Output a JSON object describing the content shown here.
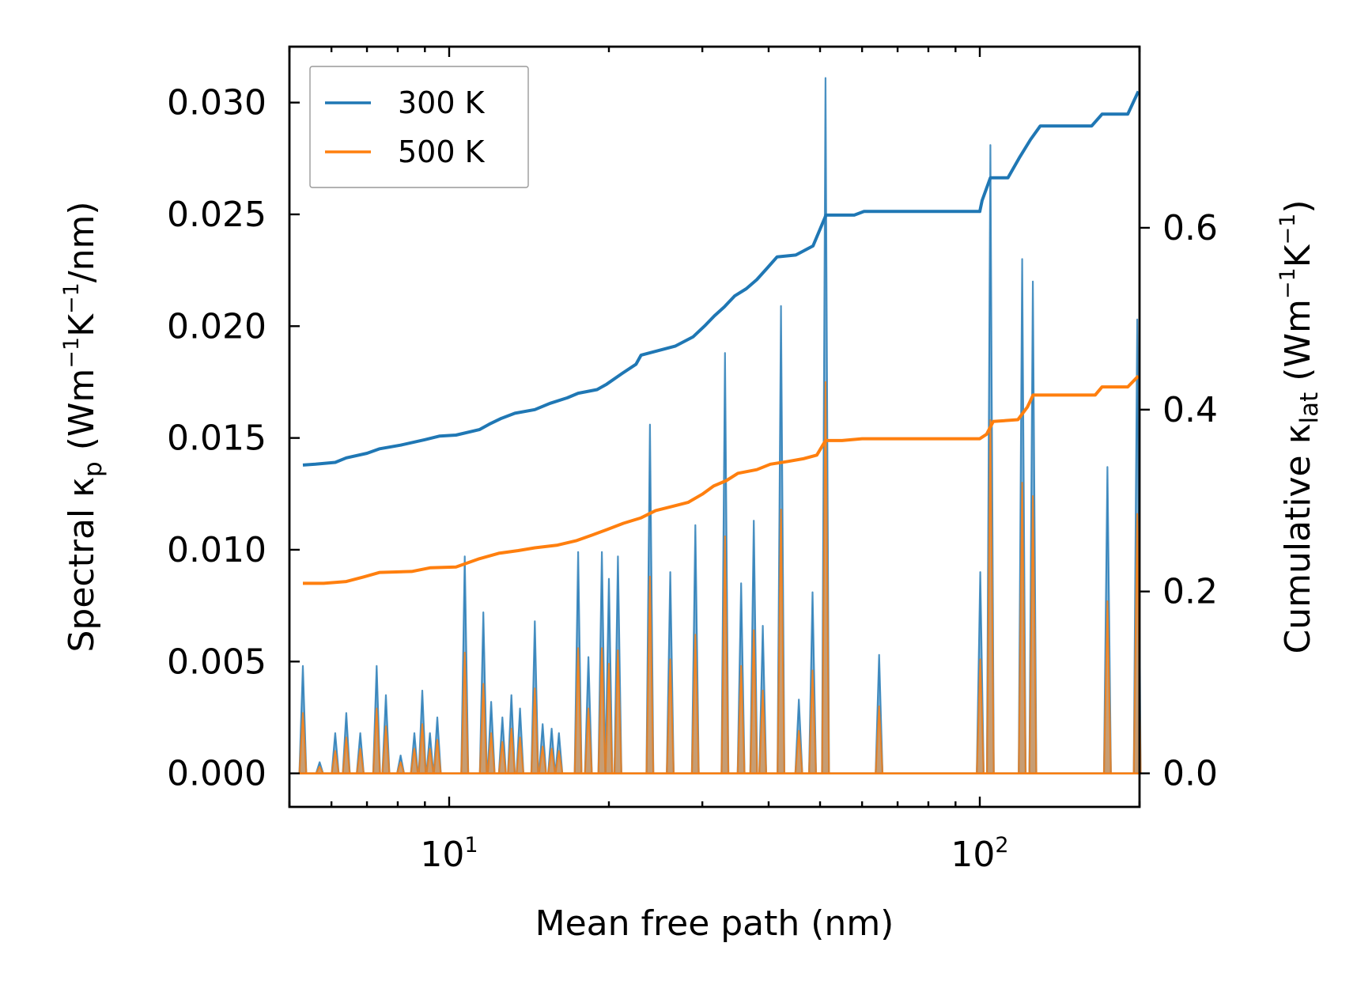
{
  "chart_data": {
    "type": "line",
    "title": "",
    "xlabel": "Mean free path (nm)",
    "xscale": "log",
    "xlim": [
      5.0,
      200.0
    ],
    "x_ticks": [
      {
        "value": 10,
        "base": "10",
        "exp": "1"
      },
      {
        "value": 100,
        "base": "10",
        "exp": "2"
      }
    ],
    "ylabel_left": {
      "parts": [
        {
          "t": "Spectral κ"
        },
        {
          "t": "p",
          "role": "sub"
        },
        {
          "t": " (Wm"
        },
        {
          "t": "−1",
          "role": "sup"
        },
        {
          "t": "K"
        },
        {
          "t": "−1",
          "role": "sup"
        },
        {
          "t": "/nm)"
        }
      ]
    },
    "ylabel_right": {
      "parts": [
        {
          "t": "Cumulative κ"
        },
        {
          "t": "lat",
          "role": "sub"
        },
        {
          "t": " (Wm"
        },
        {
          "t": "−1",
          "role": "sup"
        },
        {
          "t": "K"
        },
        {
          "t": "−1",
          "role": "sup"
        },
        {
          "t": ")"
        }
      ]
    },
    "ylim_left": [
      -0.0015,
      0.0325
    ],
    "yticks_left": [
      "0.000",
      "0.005",
      "0.010",
      "0.015",
      "0.020",
      "0.025",
      "0.030"
    ],
    "ylim_right": [
      -0.0369,
      0.7992
    ],
    "yticks_right": [
      "0.0",
      "0.2",
      "0.4",
      "0.6"
    ],
    "legend": {
      "position": "top-left",
      "entries": [
        {
          "label": "300 K",
          "color": "#1f77b4"
        },
        {
          "label": "500 K",
          "color": "#ff7f0e"
        }
      ]
    },
    "spectral_series": [
      {
        "name": "300 K",
        "color": "#1f77b4",
        "fill_opacity": 0.5,
        "peaks": [
          [
            5.3,
            0.0048
          ],
          [
            5.7,
            0.0005
          ],
          [
            6.1,
            0.0018
          ],
          [
            6.4,
            0.0027
          ],
          [
            6.8,
            0.0018
          ],
          [
            7.3,
            0.0048
          ],
          [
            7.6,
            0.0035
          ],
          [
            8.1,
            0.0008
          ],
          [
            8.6,
            0.0018
          ],
          [
            8.9,
            0.0037
          ],
          [
            9.2,
            0.0018
          ],
          [
            9.5,
            0.0025
          ],
          [
            10.7,
            0.0097
          ],
          [
            11.6,
            0.0072
          ],
          [
            12.0,
            0.0032
          ],
          [
            12.6,
            0.0025
          ],
          [
            13.1,
            0.0035
          ],
          [
            13.6,
            0.0029
          ],
          [
            14.5,
            0.0068
          ],
          [
            15.0,
            0.0022
          ],
          [
            15.6,
            0.002
          ],
          [
            16.1,
            0.0018
          ],
          [
            17.5,
            0.0099
          ],
          [
            18.3,
            0.0052
          ],
          [
            19.4,
            0.0099
          ],
          [
            20.0,
            0.0087
          ],
          [
            20.8,
            0.0097
          ],
          [
            23.9,
            0.0156
          ],
          [
            26.1,
            0.009
          ],
          [
            29.1,
            0.0111
          ],
          [
            33.1,
            0.0188
          ],
          [
            35.5,
            0.0085
          ],
          [
            37.5,
            0.0113
          ],
          [
            39.0,
            0.0066
          ],
          [
            42.2,
            0.0209
          ],
          [
            45.6,
            0.0033
          ],
          [
            48.4,
            0.0081
          ],
          [
            51.2,
            0.0311
          ],
          [
            64.6,
            0.0053
          ],
          [
            100.2,
            0.009
          ],
          [
            104.7,
            0.0281
          ],
          [
            120.2,
            0.023
          ],
          [
            125.9,
            0.022
          ],
          [
            174.0,
            0.0137
          ],
          [
            198.0,
            0.0203
          ]
        ]
      },
      {
        "name": "500 K",
        "color": "#ff7f0e",
        "fill_opacity": 0.5,
        "peaks": [
          [
            5.3,
            0.0027
          ],
          [
            5.7,
            0.0003
          ],
          [
            6.1,
            0.001
          ],
          [
            6.4,
            0.0016
          ],
          [
            6.8,
            0.0011
          ],
          [
            7.3,
            0.0029
          ],
          [
            7.6,
            0.0021
          ],
          [
            8.1,
            0.0005
          ],
          [
            8.6,
            0.0011
          ],
          [
            8.9,
            0.0022
          ],
          [
            9.2,
            0.0011
          ],
          [
            9.5,
            0.0015
          ],
          [
            10.7,
            0.0054
          ],
          [
            11.6,
            0.004
          ],
          [
            12.0,
            0.0018
          ],
          [
            12.6,
            0.0014
          ],
          [
            13.1,
            0.002
          ],
          [
            13.6,
            0.0016
          ],
          [
            14.5,
            0.0038
          ],
          [
            15.0,
            0.0012
          ],
          [
            15.6,
            0.0011
          ],
          [
            16.1,
            0.001
          ],
          [
            17.5,
            0.0056
          ],
          [
            18.3,
            0.0029
          ],
          [
            19.4,
            0.0056
          ],
          [
            20.0,
            0.0049
          ],
          [
            20.8,
            0.0055
          ],
          [
            23.9,
            0.0088
          ],
          [
            26.1,
            0.0051
          ],
          [
            29.1,
            0.0062
          ],
          [
            33.1,
            0.0106
          ],
          [
            35.5,
            0.0048
          ],
          [
            37.5,
            0.0064
          ],
          [
            39.0,
            0.0037
          ],
          [
            42.2,
            0.0118
          ],
          [
            45.6,
            0.0019
          ],
          [
            48.4,
            0.0046
          ],
          [
            51.2,
            0.0175
          ],
          [
            64.6,
            0.003
          ],
          [
            100.2,
            0.0051
          ],
          [
            104.7,
            0.0158
          ],
          [
            120.2,
            0.013
          ],
          [
            125.9,
            0.0124
          ],
          [
            174.0,
            0.0077
          ],
          [
            198.0,
            0.0116
          ]
        ]
      }
    ],
    "cumulative_series": [
      {
        "name": "300 K",
        "color": "#1f77b4",
        "points": [
          [
            5.3,
            0.339
          ],
          [
            5.6,
            0.34
          ],
          [
            6.1,
            0.342
          ],
          [
            6.4,
            0.347
          ],
          [
            7.0,
            0.352
          ],
          [
            7.4,
            0.357
          ],
          [
            8.1,
            0.361
          ],
          [
            9.0,
            0.367
          ],
          [
            9.6,
            0.371
          ],
          [
            10.3,
            0.372
          ],
          [
            11.4,
            0.378
          ],
          [
            11.9,
            0.384
          ],
          [
            12.5,
            0.39
          ],
          [
            13.3,
            0.396
          ],
          [
            14.5,
            0.4
          ],
          [
            15.5,
            0.407
          ],
          [
            16.7,
            0.413
          ],
          [
            17.5,
            0.418
          ],
          [
            19.0,
            0.422
          ],
          [
            19.8,
            0.428
          ],
          [
            21.2,
            0.44
          ],
          [
            22.5,
            0.45
          ],
          [
            23.0,
            0.46
          ],
          [
            26.7,
            0.47
          ],
          [
            28.8,
            0.48
          ],
          [
            30.3,
            0.492
          ],
          [
            31.6,
            0.503
          ],
          [
            33.0,
            0.513
          ],
          [
            34.5,
            0.525
          ],
          [
            36.3,
            0.533
          ],
          [
            38.0,
            0.543
          ],
          [
            39.8,
            0.556
          ],
          [
            41.5,
            0.568
          ],
          [
            45.0,
            0.57
          ],
          [
            48.5,
            0.58
          ],
          [
            51.3,
            0.614
          ],
          [
            58.0,
            0.614
          ],
          [
            60.5,
            0.618
          ],
          [
            100.0,
            0.618
          ],
          [
            101.0,
            0.63
          ],
          [
            104.7,
            0.655
          ],
          [
            113.0,
            0.655
          ],
          [
            119.0,
            0.678
          ],
          [
            124.6,
            0.697
          ],
          [
            130.0,
            0.712
          ],
          [
            162.5,
            0.712
          ],
          [
            170.0,
            0.725
          ],
          [
            190.0,
            0.725
          ],
          [
            199.0,
            0.75
          ]
        ]
      },
      {
        "name": "500 K",
        "color": "#ff7f0e",
        "points": [
          [
            5.3,
            0.209
          ],
          [
            5.8,
            0.209
          ],
          [
            6.4,
            0.211
          ],
          [
            6.9,
            0.216
          ],
          [
            7.4,
            0.221
          ],
          [
            8.5,
            0.222
          ],
          [
            9.2,
            0.226
          ],
          [
            10.3,
            0.227
          ],
          [
            11.4,
            0.236
          ],
          [
            12.4,
            0.242
          ],
          [
            13.5,
            0.245
          ],
          [
            14.5,
            0.248
          ],
          [
            16.0,
            0.251
          ],
          [
            17.4,
            0.256
          ],
          [
            18.6,
            0.262
          ],
          [
            19.8,
            0.268
          ],
          [
            21.3,
            0.275
          ],
          [
            23.0,
            0.281
          ],
          [
            24.5,
            0.289
          ],
          [
            26.5,
            0.294
          ],
          [
            28.2,
            0.298
          ],
          [
            30.0,
            0.307
          ],
          [
            31.5,
            0.316
          ],
          [
            33.3,
            0.322
          ],
          [
            35.0,
            0.33
          ],
          [
            38.0,
            0.334
          ],
          [
            40.3,
            0.34
          ],
          [
            43.5,
            0.343
          ],
          [
            46.5,
            0.346
          ],
          [
            49.3,
            0.35
          ],
          [
            51.2,
            0.366
          ],
          [
            55.0,
            0.366
          ],
          [
            60.0,
            0.368
          ],
          [
            100.0,
            0.368
          ],
          [
            103.0,
            0.373
          ],
          [
            106.0,
            0.387
          ],
          [
            118.0,
            0.389
          ],
          [
            123.0,
            0.403
          ],
          [
            126.0,
            0.416
          ],
          [
            165.0,
            0.416
          ],
          [
            170.0,
            0.425
          ],
          [
            190.0,
            0.425
          ],
          [
            199.0,
            0.437
          ]
        ]
      }
    ]
  }
}
